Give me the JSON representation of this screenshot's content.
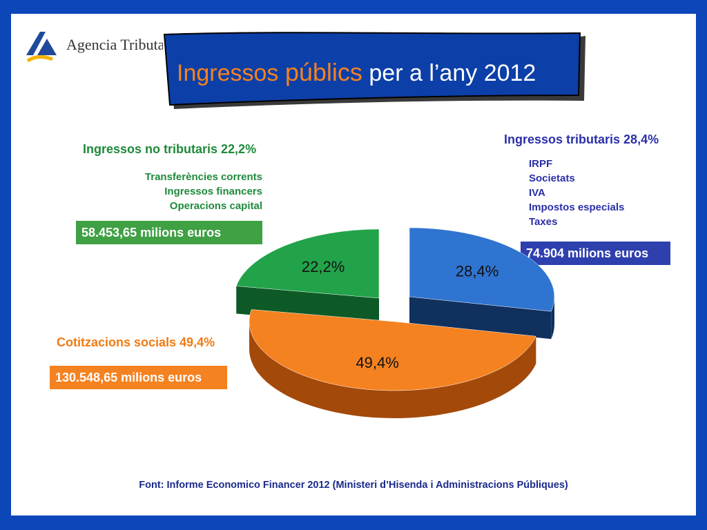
{
  "logo": {
    "brand_text": "Agencia Tributaria"
  },
  "title": {
    "part1": "Ingressos",
    "part2": "públics",
    "part3": "per a l’any 2012"
  },
  "non_tax": {
    "heading": "Ingressos no tributaris 22,2%",
    "items": [
      "Transferències corrents",
      "Ingressos financers",
      "Operacions capital"
    ],
    "amount": "58.453,65 milions euros"
  },
  "tax": {
    "heading": "Ingressos tributaris 28,4%",
    "items": [
      "IRPF",
      "Societats",
      "IVA",
      "Impostos especials",
      "Taxes"
    ],
    "amount": "74.904 milions euros"
  },
  "social": {
    "heading": "Cotitzacions socials 49,4%",
    "amount": "130.548,65 milions euros"
  },
  "source": "Font: Informe Economico Financer 2012 (Ministeri d’Hisenda i Administracions Públiques)",
  "colors": {
    "green": "#22a34a",
    "blue": "#2f74d0",
    "orange": "#f58220",
    "frame": "#0c46b8"
  },
  "chart_data": {
    "type": "pie",
    "slices": [
      {
        "label": "Ingressos no tributaris",
        "value": 22.2,
        "display": "22,2%",
        "color": "#22a34a",
        "side": "#0d5a26"
      },
      {
        "label": "Ingressos tributaris",
        "value": 28.4,
        "display": "28,4%",
        "color": "#2f74d0",
        "side": "#10305e"
      },
      {
        "label": "Cotitzacions socials",
        "value": 49.4,
        "display": "49,4%",
        "color": "#f58220",
        "side": "#a3490a"
      }
    ]
  }
}
